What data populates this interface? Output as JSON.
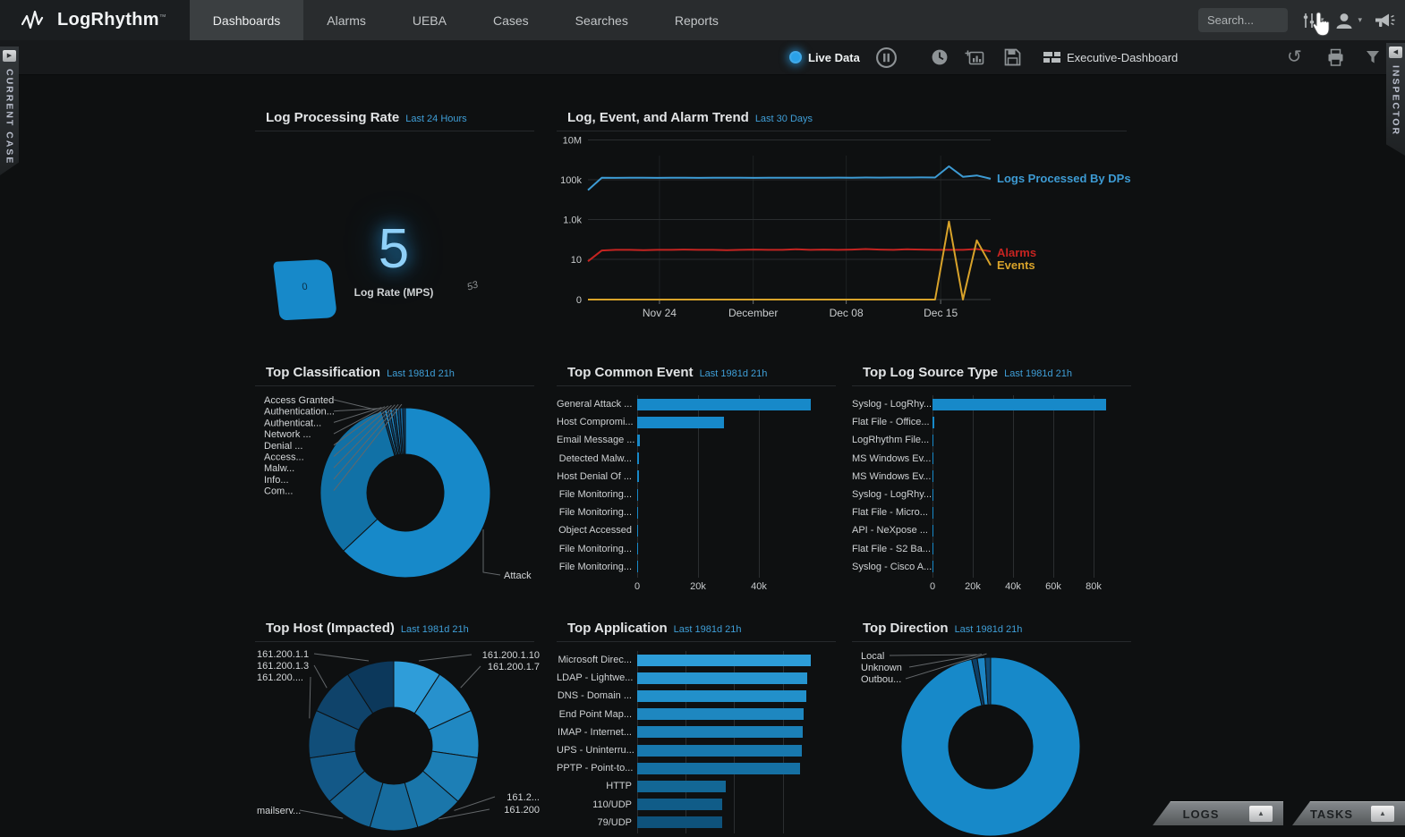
{
  "nav": {
    "brand": "LogRhythm",
    "trademark": "™",
    "items": [
      {
        "label": "Dashboards",
        "active": true
      },
      {
        "label": "Alarms",
        "active": false
      },
      {
        "label": "UEBA",
        "active": false
      },
      {
        "label": "Cases",
        "active": false
      },
      {
        "label": "Searches",
        "active": false
      },
      {
        "label": "Reports",
        "active": false
      }
    ],
    "search_placeholder": "Search...",
    "icons": [
      "sliders-icon",
      "user-icon",
      "megaphone-icon"
    ]
  },
  "toolbar": {
    "live_data": "Live Data",
    "dashboard_name": "Executive-Dashboard",
    "icons": [
      "pause-icon",
      "clock-icon",
      "add-widget-icon",
      "save-icon",
      "layout-icon",
      "reset-icon",
      "print-icon",
      "filter-icon"
    ]
  },
  "side_panels": {
    "left": "CURRENT CASE",
    "right": "INSPECTOR"
  },
  "footer_tabs": [
    {
      "label": "LOGS"
    },
    {
      "label": "TASKS"
    }
  ],
  "colors": {
    "accent_blue": "#1789c9",
    "line_blue": "#3d9bd4",
    "alarm_red": "#c52421",
    "event_gold": "#d9a32a",
    "subtitle_blue": "#3f9fd8"
  },
  "chart_data": [
    {
      "id": "log_processing_rate",
      "type": "gauge",
      "title": "Log Processing Rate",
      "range": "Last 24 Hours",
      "value": "5",
      "value_label": "Log Rate (MPS)",
      "min_label": "0",
      "scale_label": "53"
    },
    {
      "id": "log_event_alarm_trend",
      "type": "line",
      "title": "Log, Event, and Alarm Trend",
      "range": "Last 30 Days",
      "y_scale": "log",
      "y_ticks": [
        "10M",
        "100k",
        "1.0k",
        "10",
        "0"
      ],
      "x_ticks": [
        "Nov 24",
        "December",
        "Dec 08",
        "Dec 15"
      ],
      "series": [
        {
          "name": "Logs Processed By DPs",
          "color": "#3d9bd4",
          "values": [
            30000,
            125000,
            124000,
            126000,
            125000,
            124000,
            126000,
            125000,
            124000,
            125000,
            126000,
            125000,
            124000,
            126000,
            125000,
            127000,
            125000,
            126000,
            128000,
            127000,
            129000,
            128000,
            130000,
            129000,
            131000,
            130000,
            470000,
            140000,
            165000,
            112000
          ]
        },
        {
          "name": "Alarms",
          "color": "#c52421",
          "values": [
            8,
            28,
            30,
            30,
            29,
            30,
            30,
            31,
            30,
            30,
            29,
            30,
            31,
            30,
            30,
            32,
            30,
            31,
            30,
            31,
            33,
            31,
            30,
            32,
            31,
            30,
            30,
            30,
            33,
            25
          ]
        },
        {
          "name": "Events",
          "color": "#d9a32a",
          "values": [
            0,
            0,
            0,
            0,
            0,
            0,
            0,
            0,
            0,
            0,
            0,
            0,
            0,
            0,
            0,
            0,
            0,
            0,
            0,
            0,
            0,
            0,
            0,
            0,
            0,
            0,
            800,
            0,
            90,
            5
          ]
        }
      ]
    },
    {
      "id": "top_classification",
      "type": "donut",
      "title": "Top Classification",
      "range": "Last 1981d 21h",
      "segments": [
        {
          "label": "Attack",
          "value": 63.0,
          "color": "#1789c9"
        },
        {
          "label": "",
          "value": 32.5,
          "color": "#1171a6"
        },
        {
          "label": "Access Granted",
          "value": 0.5,
          "color": "#0d3f66"
        },
        {
          "label": "Authentication...",
          "value": 0.5,
          "color": "#2196d8"
        },
        {
          "label": "Authenticat...",
          "value": 0.5,
          "color": "#0f4a77"
        },
        {
          "label": "Network ...",
          "value": 0.5,
          "color": "#1d85c4"
        },
        {
          "label": "Denial ...",
          "value": 0.5,
          "color": "#0d3f66"
        },
        {
          "label": "Access...",
          "value": 0.5,
          "color": "#1a7db8"
        },
        {
          "label": "Malw...",
          "value": 0.5,
          "color": "#0f4a77"
        },
        {
          "label": "Info...",
          "value": 0.5,
          "color": "#1568a0"
        },
        {
          "label": "Com...",
          "value": 0.5,
          "color": "#0d3f66"
        }
      ]
    },
    {
      "id": "top_common_event",
      "type": "bar",
      "title": "Top Common Event",
      "range": "Last 1981d 21h",
      "bar_color": "#1789c9",
      "categories": [
        "General Attack ...",
        "Host Compromi...",
        "Email Message ...",
        "Detected Malw...",
        "Host Denial Of ...",
        "File Monitoring...",
        "File Monitoring...",
        "Object Accessed",
        "File Monitoring...",
        "File Monitoring..."
      ],
      "values": [
        57000,
        28500,
        800,
        700,
        600,
        150,
        120,
        100,
        80,
        60
      ],
      "x_ticks": [
        {
          "v": 0,
          "label": "0"
        },
        {
          "v": 20000,
          "label": "20k"
        },
        {
          "v": 40000,
          "label": "40k"
        }
      ]
    },
    {
      "id": "top_log_source_type",
      "type": "bar",
      "title": "Top Log Source Type",
      "range": "Last 1981d 21h",
      "bar_color": "#1789c9",
      "categories": [
        "Syslog - LogRhy...",
        "Flat File - Office...",
        "LogRhythm File...",
        "MS Windows Ev...",
        "MS Windows Ev...",
        "Syslog - LogRhy...",
        "Flat File - Micro...",
        "API - NeXpose ...",
        "Flat File - S2 Ba...",
        "Syslog - Cisco A..."
      ],
      "values": [
        86000,
        800,
        600,
        300,
        200,
        150,
        100,
        80,
        60,
        40
      ],
      "x_ticks": [
        {
          "v": 0,
          "label": "0"
        },
        {
          "v": 20000,
          "label": "20k"
        },
        {
          "v": 40000,
          "label": "40k"
        },
        {
          "v": 60000,
          "label": "60k"
        },
        {
          "v": 80000,
          "label": "80k"
        }
      ]
    },
    {
      "id": "top_host_impacted",
      "type": "donut",
      "title": "Top Host (Impacted)",
      "range": "Last 1981d 21h",
      "segments": [
        {
          "label": "161.200.1.10",
          "value": 9.09,
          "color": "#2f9dd9"
        },
        {
          "label": "161.200.1.7",
          "value": 9.09,
          "color": "#2791cd"
        },
        {
          "label": "",
          "value": 9.09,
          "color": "#2088c2"
        },
        {
          "label": "",
          "value": 9.09,
          "color": "#1d7fb6"
        },
        {
          "label": "161.2...",
          "value": 9.09,
          "color": "#1a76aa"
        },
        {
          "label": "161.200",
          "value": 9.09,
          "color": "#176c9e"
        },
        {
          "label": "mailserv...",
          "value": 9.09,
          "color": "#156292"
        },
        {
          "label": "",
          "value": 9.09,
          "color": "#135887"
        },
        {
          "label": "161.200....",
          "value": 9.09,
          "color": "#114e79"
        },
        {
          "label": "161.200.1.3",
          "value": 9.09,
          "color": "#0f436a"
        },
        {
          "label": "161.200.1.1",
          "value": 9.1,
          "color": "#0c385b"
        }
      ]
    },
    {
      "id": "top_application",
      "type": "bar",
      "title": "Top Application",
      "range": "Last 1981d 21h",
      "categories": [
        "Microsoft Direc...",
        "LDAP - Lightwe...",
        "DNS - Domain ...",
        "End Point Map...",
        "IMAP - Internet...",
        "UPS - Uninterru...",
        "PPTP - Point-to...",
        "HTTP",
        "110/UDP",
        "79/UDP"
      ],
      "values": [
        17900,
        17500,
        17450,
        17200,
        17050,
        17000,
        16800,
        9100,
        8800,
        8800
      ],
      "bar_colors": [
        "#2d9dd8",
        "#2795d0",
        "#2290ca",
        "#1e87c0",
        "#1b80b7",
        "#1878ad",
        "#1570a3",
        "#136795",
        "#105c88",
        "#0e527b"
      ],
      "gridlines": [
        0,
        5000,
        10000,
        15000
      ]
    },
    {
      "id": "top_direction",
      "type": "donut",
      "title": "Top Direction",
      "range": "Last 1981d 21h",
      "segments": [
        {
          "label": "",
          "value": 96.6,
          "color": "#1789c9"
        },
        {
          "label": "Local",
          "value": 1.0,
          "color": "#0d3f66"
        },
        {
          "label": "Unknown",
          "value": 1.4,
          "color": "#1d85c4"
        },
        {
          "label": "Outbou...",
          "value": 1.0,
          "color": "#0f4a77"
        }
      ]
    }
  ]
}
